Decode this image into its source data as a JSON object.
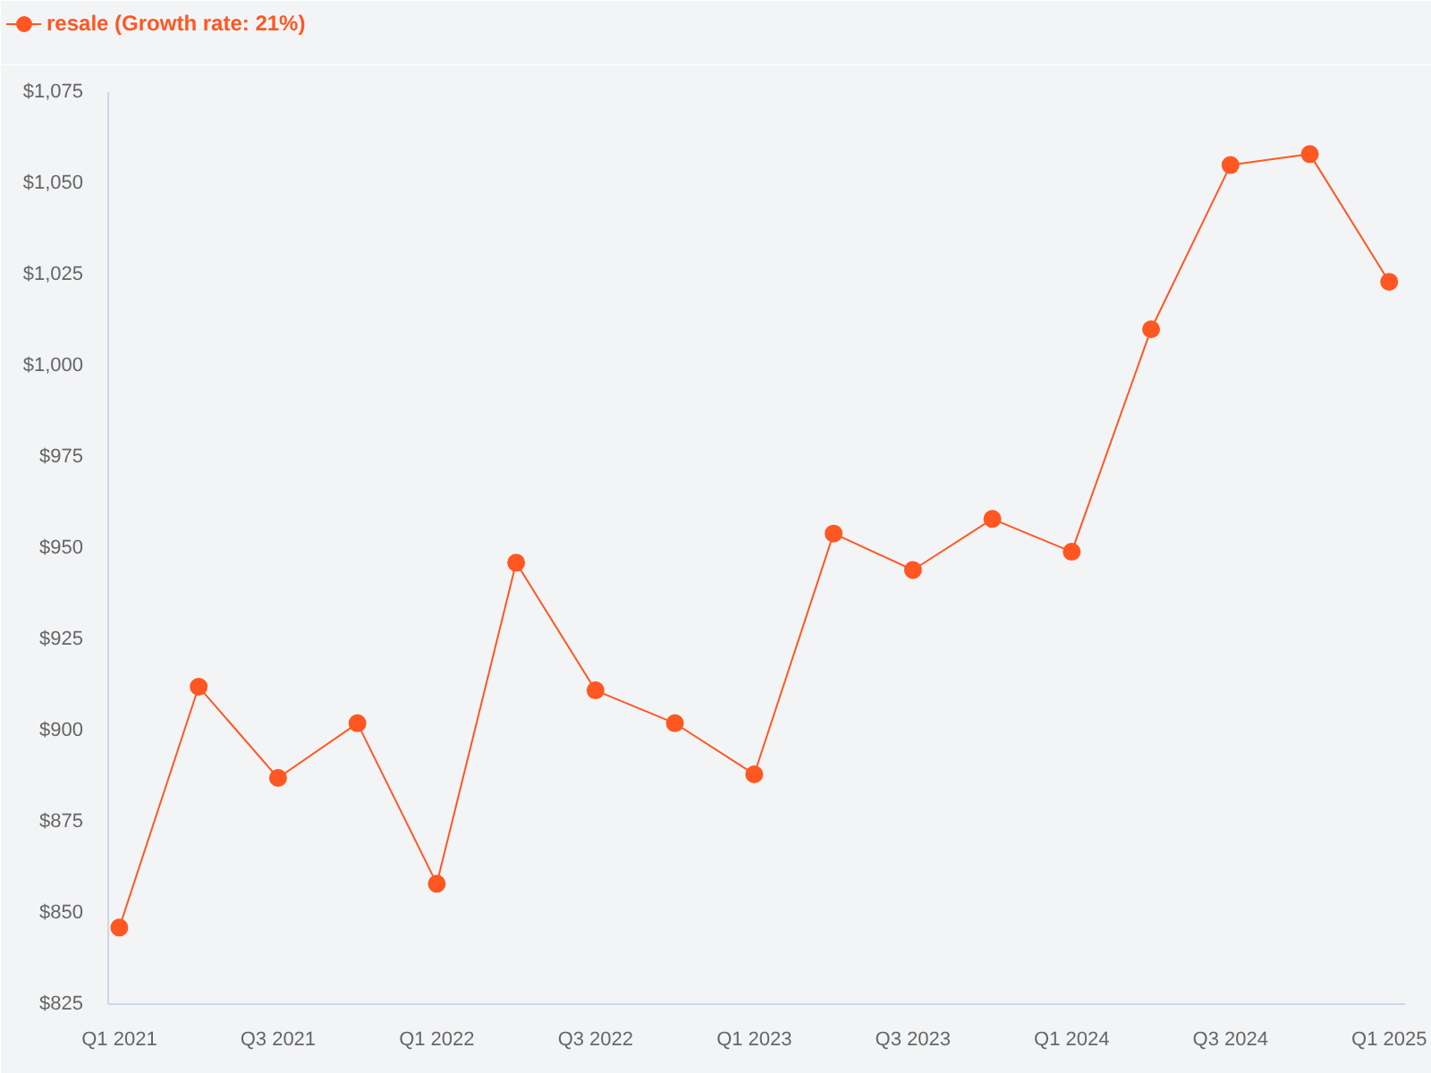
{
  "chart_data": {
    "type": "line",
    "categories": [
      "Q1 2021",
      null,
      "Q3 2021",
      null,
      "Q1 2022",
      null,
      "Q3 2022",
      null,
      "Q1 2023",
      null,
      "Q3 2023",
      null,
      "Q1 2024",
      null,
      "Q3 2024",
      null,
      "Q1 2025"
    ],
    "series": [
      {
        "name": "resale (Growth rate: 21%)",
        "color": "#ff5722",
        "values": [
          846,
          912,
          887,
          902,
          858,
          946,
          911,
          902,
          888,
          954,
          944,
          958,
          949,
          1010,
          1055,
          1058,
          1023
        ]
      }
    ],
    "ylim": [
      825,
      1075
    ],
    "yticks": [
      {
        "value": 825,
        "label": "$825"
      },
      {
        "value": 850,
        "label": "$850"
      },
      {
        "value": 875,
        "label": "$875"
      },
      {
        "value": 900,
        "label": "$900"
      },
      {
        "value": 925,
        "label": "$925"
      },
      {
        "value": 950,
        "label": "$950"
      },
      {
        "value": 975,
        "label": "$975"
      },
      {
        "value": 1000,
        "label": "$1,000"
      },
      {
        "value": 1025,
        "label": "$1,025"
      },
      {
        "value": 1050,
        "label": "$1,050"
      },
      {
        "value": 1075,
        "label": "$1,075"
      }
    ],
    "grid": false,
    "legend": "top left",
    "marker": "circle",
    "line_style": "solid"
  }
}
